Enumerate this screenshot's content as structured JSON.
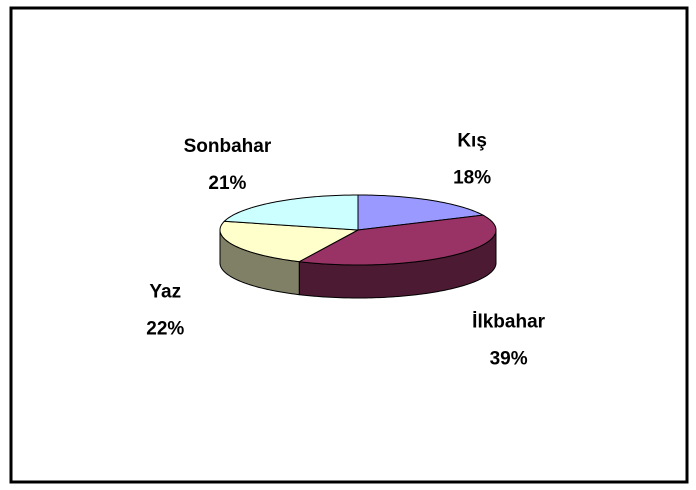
{
  "chart_data": {
    "type": "pie3d",
    "categories": [
      "Kış",
      "İlkbahar",
      "Yaz",
      "Sonbahar"
    ],
    "values": [
      18,
      39,
      22,
      21
    ],
    "value_labels": [
      "18%",
      "39%",
      "22%",
      "21%"
    ],
    "colors": [
      "#9999ff",
      "#993366",
      "#ffffcc",
      "#ccffff"
    ]
  }
}
